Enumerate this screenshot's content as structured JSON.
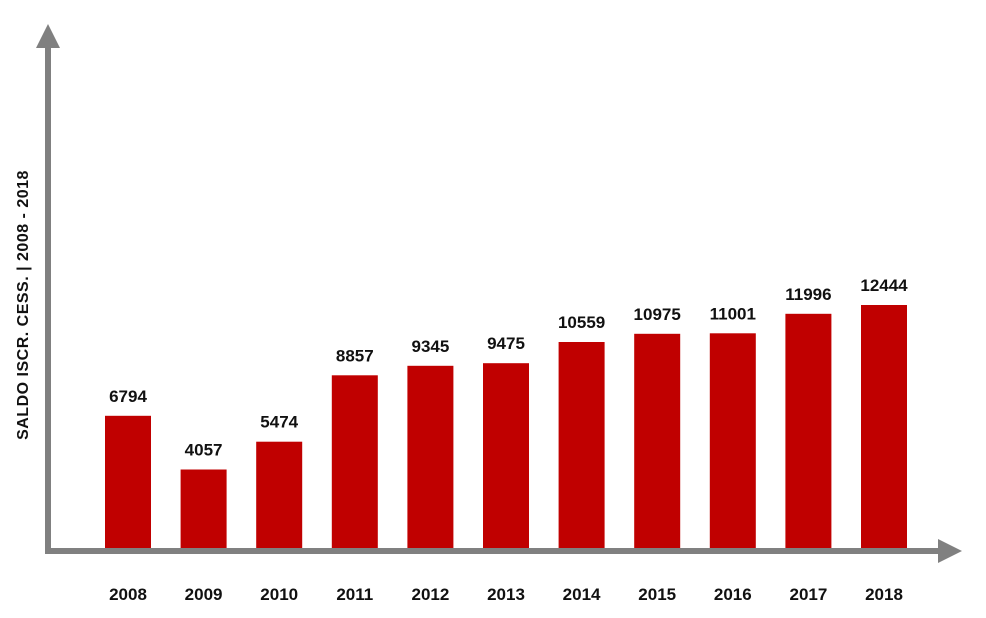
{
  "chart_data": {
    "type": "bar",
    "title": "",
    "xlabel": "",
    "ylabel": "SALDO ISCR. CESS. | 2008 - 2018",
    "categories": [
      "2008",
      "2009",
      "2010",
      "2011",
      "2012",
      "2013",
      "2014",
      "2015",
      "2016",
      "2017",
      "2018"
    ],
    "values": [
      6794,
      4057,
      5474,
      8857,
      9345,
      9475,
      10559,
      10975,
      11001,
      11996,
      12444
    ],
    "ylim": [
      0,
      28000
    ],
    "grid": false,
    "legend": "none",
    "data_labels": true,
    "bar_color": "#c00000",
    "axis_color": "#808080"
  }
}
